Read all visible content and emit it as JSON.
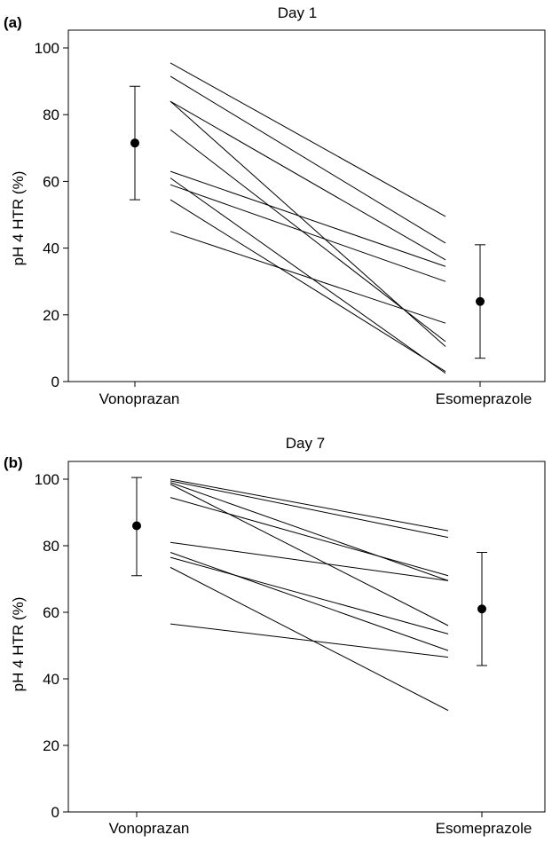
{
  "chart_data": [
    {
      "type": "line",
      "panel_label": "(a)",
      "title": "Day 1",
      "xlabel": "",
      "ylabel": "pH 4 HTR (%)",
      "categories": [
        "Vonoprazan",
        "Esomeprazole"
      ],
      "ylim": [
        0,
        105
      ],
      "yticks": [
        0,
        20,
        40,
        60,
        80,
        100
      ],
      "grid": false,
      "summary": {
        "vonoprazan": {
          "mean": 71.5,
          "lower": 54.5,
          "upper": 88.5
        },
        "esomeprazole": {
          "mean": 24.0,
          "lower": 7.0,
          "upper": 41.0
        }
      },
      "series": [
        {
          "values": [
            95.5,
            49.5
          ]
        },
        {
          "values": [
            91.5,
            41.5
          ]
        },
        {
          "values": [
            84.0,
            36.5
          ]
        },
        {
          "values": [
            84.0,
            10.5
          ]
        },
        {
          "values": [
            75.5,
            12.0
          ]
        },
        {
          "values": [
            63.0,
            34.5
          ]
        },
        {
          "values": [
            61.0,
            2.5
          ]
        },
        {
          "values": [
            59.0,
            30.0
          ]
        },
        {
          "values": [
            54.5,
            3.0
          ]
        },
        {
          "values": [
            45.0,
            17.5
          ]
        }
      ]
    },
    {
      "type": "line",
      "panel_label": "(b)",
      "title": "Day 7",
      "xlabel": "",
      "ylabel": "pH 4 HTR (%)",
      "categories": [
        "Vonoprazan",
        "Esomeprazole"
      ],
      "ylim": [
        0,
        105
      ],
      "yticks": [
        0,
        20,
        40,
        60,
        80,
        100
      ],
      "grid": false,
      "summary": {
        "vonoprazan": {
          "mean": 86.0,
          "lower": 71.0,
          "upper": 100.5
        },
        "esomeprazole": {
          "mean": 61.0,
          "lower": 44.0,
          "upper": 78.0
        }
      },
      "series": [
        {
          "values": [
            100.0,
            84.5
          ]
        },
        {
          "values": [
            99.5,
            82.5
          ]
        },
        {
          "values": [
            99.0,
            69.5
          ]
        },
        {
          "values": [
            98.5,
            56.0
          ]
        },
        {
          "values": [
            94.5,
            71.0
          ]
        },
        {
          "values": [
            81.0,
            69.5
          ]
        },
        {
          "values": [
            78.0,
            48.5
          ]
        },
        {
          "values": [
            76.5,
            53.5
          ]
        },
        {
          "values": [
            73.5,
            30.5
          ]
        },
        {
          "values": [
            56.5,
            46.5
          ]
        }
      ]
    }
  ]
}
